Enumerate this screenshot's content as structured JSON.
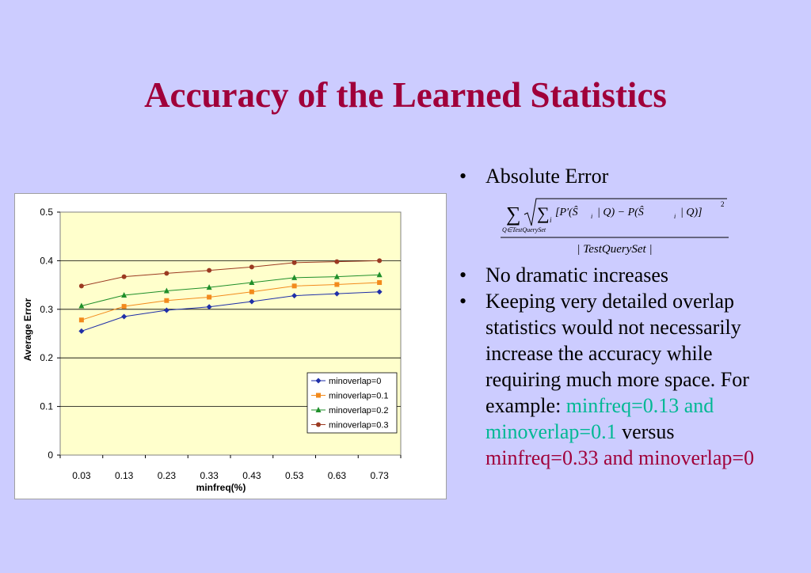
{
  "slide": {
    "title": "Accuracy of the Learned Statistics",
    "bullets": {
      "b1": "Absolute Error",
      "b2": "No dramatic increases",
      "b3_text": "Keeping very detailed overlap statistics would not necessarily increase the accuracy while requiring much more space. For example: ",
      "b3_teal": "minfreq=0.13 and minoverlap=0.1",
      "b3_mid": " versus ",
      "b3_red": "minfreq=0.33 and minoverlap=0"
    },
    "formula": {
      "sum_subscript": "Q∈TestQuerySet",
      "inner_index": "i",
      "numerator_expr": "[P'(Ŝ",
      "numerator_mid": "| Q) − P(Ŝ",
      "numerator_end": "| Q)]",
      "exponent": "2",
      "denominator": "| TestQuerySet |"
    },
    "colors": {
      "background": "#ccccff",
      "title": "#a0003a",
      "highlight_teal": "#00b894",
      "highlight_red": "#a0003a"
    }
  },
  "chart_data": {
    "type": "line",
    "title": "",
    "xlabel": "minfreq(%)",
    "ylabel": "Average Error",
    "categories": [
      "0.03",
      "0.13",
      "0.23",
      "0.33",
      "0.43",
      "0.53",
      "0.63",
      "0.73"
    ],
    "ylim": [
      0,
      0.5
    ],
    "yticks": [
      "0",
      "0.1",
      "0.2",
      "0.3",
      "0.4",
      "0.5"
    ],
    "grid": true,
    "legend_position": "bottom-right",
    "plot_background": "#ffffcc",
    "series": [
      {
        "name": "minoverlap=0",
        "color": "#1f2fa8",
        "marker": "diamond",
        "values": [
          0.255,
          0.285,
          0.298,
          0.305,
          0.316,
          0.328,
          0.332,
          0.336
        ]
      },
      {
        "name": "minoverlap=0.1",
        "color": "#f28a1c",
        "marker": "square",
        "values": [
          0.278,
          0.306,
          0.318,
          0.325,
          0.336,
          0.348,
          0.351,
          0.355
        ]
      },
      {
        "name": "minoverlap=0.2",
        "color": "#1f8f2a",
        "marker": "triangle",
        "values": [
          0.307,
          0.329,
          0.338,
          0.345,
          0.355,
          0.365,
          0.367,
          0.371
        ]
      },
      {
        "name": "minoverlap=0.3",
        "color": "#9b3a22",
        "marker": "circle",
        "values": [
          0.348,
          0.367,
          0.374,
          0.38,
          0.387,
          0.396,
          0.398,
          0.4
        ]
      }
    ]
  }
}
